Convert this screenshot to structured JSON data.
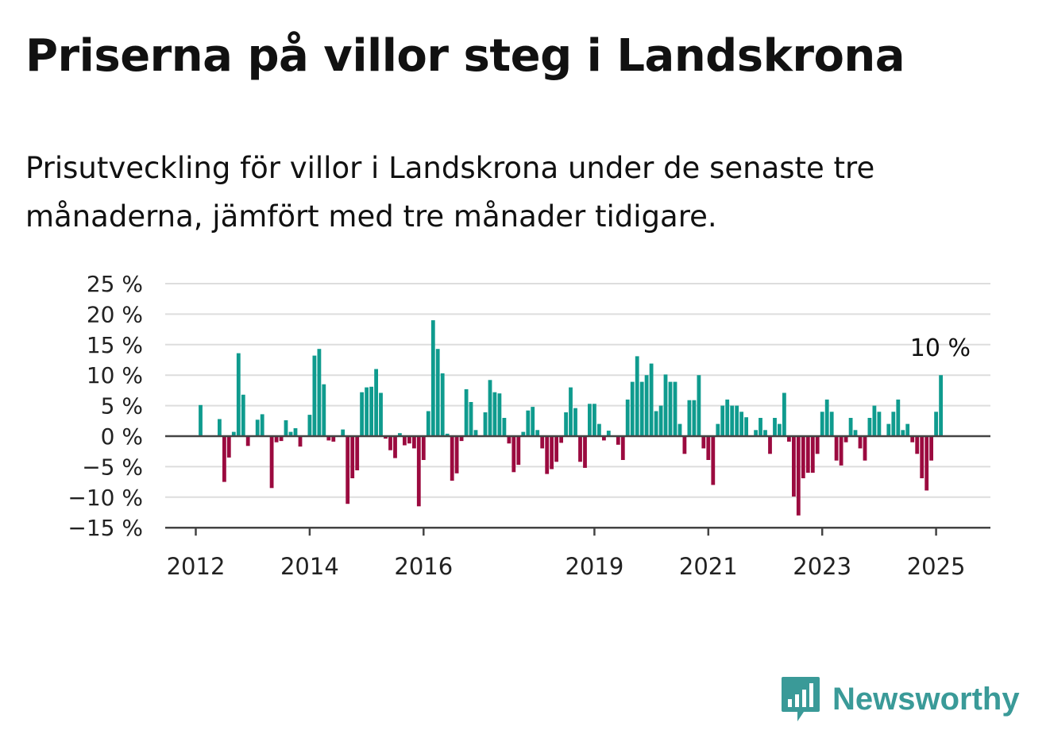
{
  "title": "Priserna på villor steg i Landskrona",
  "subtitle": "Prisutveckling för villor i Landskrona under de senaste tre månaderna, jämfört med tre månader tidigare.",
  "brand": {
    "name": "Newsworthy",
    "color": "#3a9a98"
  },
  "colors": {
    "positive": "#0f9b8e",
    "negative": "#9b0a3f",
    "grid": "#dddddd",
    "axis": "#444444"
  },
  "chart_data": {
    "type": "bar",
    "x_unit": "month",
    "x_start": "2012-01",
    "ylim": [
      -15,
      25
    ],
    "yticks": [
      -15,
      -10,
      -5,
      0,
      5,
      10,
      15,
      20,
      25
    ],
    "ytick_labels": [
      "−15 %",
      "−10 %",
      "−5 %",
      "0 %",
      "5 %",
      "10 %",
      "15 %",
      "20 %",
      "25 %"
    ],
    "xticks": [
      "2012",
      "2014",
      "2016",
      "2019",
      "2021",
      "2023",
      "2025"
    ],
    "grid": true,
    "annotation": "10 %",
    "values": [
      null,
      5.1,
      null,
      null,
      null,
      2.8,
      -7.5,
      -3.5,
      0.7,
      13.6,
      6.8,
      -1.6,
      null,
      2.7,
      3.6,
      null,
      -8.5,
      -1.0,
      -0.8,
      2.6,
      0.7,
      1.3,
      -1.7,
      null,
      3.5,
      13.2,
      14.3,
      8.5,
      -0.7,
      -0.9,
      null,
      1.1,
      -11.1,
      -6.9,
      -5.6,
      7.2,
      8.0,
      8.1,
      11.0,
      7.1,
      -0.4,
      -2.3,
      -3.6,
      0.5,
      -1.5,
      -1.2,
      -2.0,
      -11.5,
      -3.9,
      4.1,
      19.0,
      14.3,
      10.3,
      0.4,
      -7.3,
      -6.1,
      -0.8,
      7.7,
      5.6,
      1.0,
      null,
      3.9,
      9.2,
      7.2,
      7.0,
      3.0,
      -1.2,
      -5.9,
      -4.7,
      0.7,
      4.2,
      4.8,
      1.0,
      -2.0,
      -6.2,
      -5.4,
      -4.2,
      -1.1,
      3.9,
      8.0,
      4.6,
      -4.2,
      -5.2,
      5.3,
      5.3,
      2.0,
      -0.7,
      0.9,
      null,
      -1.4,
      -3.9,
      6.0,
      8.9,
      13.1,
      8.9,
      10.0,
      11.9,
      4.1,
      5.0,
      10.1,
      8.9,
      8.9,
      2.0,
      -2.9,
      5.9,
      5.9,
      10.0,
      -2.0,
      -3.9,
      -8.0,
      2.0,
      5.0,
      6.0,
      5.0,
      5.0,
      4.0,
      3.1,
      null,
      1.0,
      3.0,
      1.0,
      -2.9,
      3.0,
      2.0,
      7.1,
      -0.9,
      -9.9,
      -13.0,
      -6.9,
      -6.0,
      -6.0,
      -2.9,
      4.0,
      6.0,
      4.0,
      -4.0,
      -4.8,
      -1.0,
      3.0,
      1.0,
      -2.0,
      -4.0,
      3.0,
      5.0,
      4.0,
      null,
      2.0,
      4.0,
      6.0,
      1.0,
      2.0,
      -1.0,
      -2.9,
      -6.9,
      -8.9,
      -4.0,
      4.0,
      10.0
    ]
  }
}
